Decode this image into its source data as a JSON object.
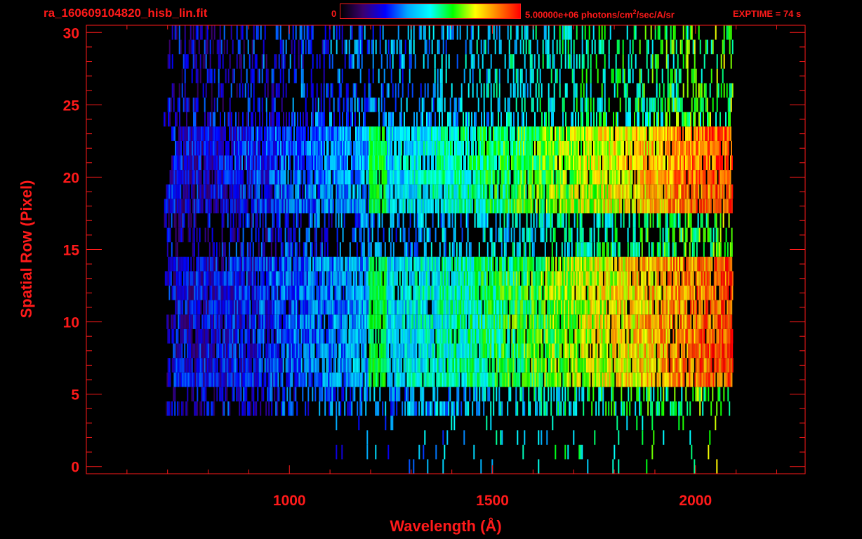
{
  "header": {
    "filename": "ra_160609104820_hisb_lin.fit",
    "colorbar_min": "0",
    "colorbar_max": "5.00000e+06 photons/cm",
    "colorbar_max_sup": "2",
    "colorbar_max_tail": "/sec/A/sr",
    "exptime": "EXPTIME = 74 s"
  },
  "colors": {
    "axis": "#ff1a1a",
    "background": "#000000",
    "colormap": [
      "#000000",
      "#3a006e",
      "#0000ff",
      "#00aaff",
      "#00ffff",
      "#00ff00",
      "#ffff00",
      "#ff7f00",
      "#ff0000"
    ]
  },
  "chart_data": {
    "type": "heatmap",
    "xlabel": "Wavelength (Å)",
    "ylabel": "Spatial Row (Pixel)",
    "x_ticks": [
      1000,
      1500,
      2000
    ],
    "y_ticks": [
      0,
      5,
      10,
      15,
      20,
      25,
      30
    ],
    "xlim": [
      500,
      2270
    ],
    "ylim": [
      -0.5,
      30.5
    ],
    "colorbar_range": [
      0,
      5000000
    ],
    "data_extent_x": [
      690,
      2090
    ],
    "bright_rows": [
      [
        6,
        14
      ],
      [
        18,
        23
      ]
    ],
    "emission_feature_x": 1216
  }
}
